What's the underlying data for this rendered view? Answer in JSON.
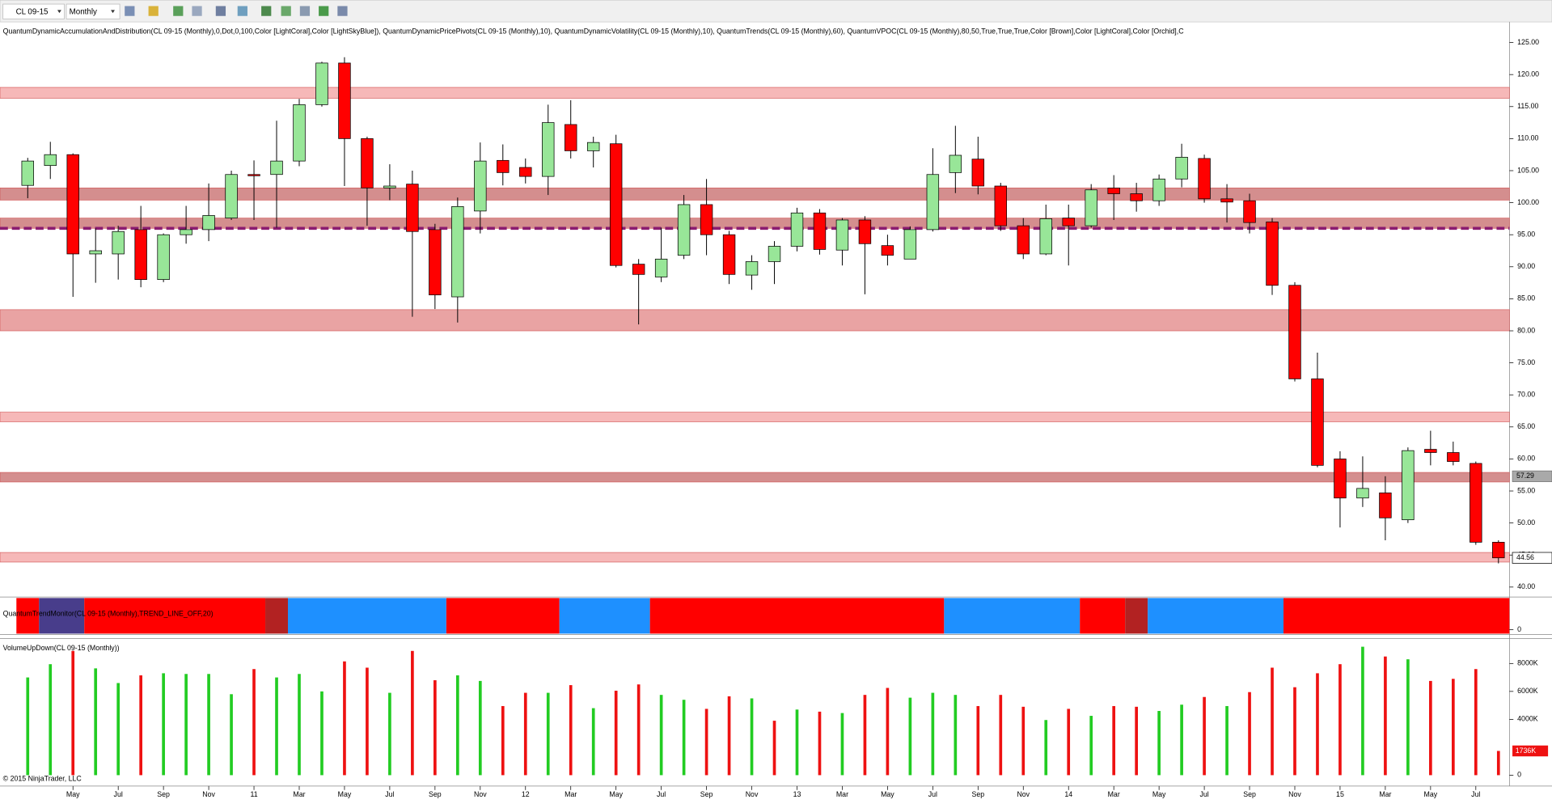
{
  "toolbar": {
    "symbol": "CL 09-15",
    "period": "Monthly"
  },
  "copyright": "© 2015 NinjaTrader, LLC",
  "chart_data": [
    {
      "type": "candlestick",
      "title": "QuantumDynamicAccumulationAndDistribution(CL 09-15 (Monthly),0,Dot,0,100,Color [LightCoral],Color [LightSkyBlue]), QuantumDynamicPricePivots(CL 09-15 (Monthly),10), QuantumDynamicVolatility(CL 09-15 (Monthly),10), QuantumTrends(CL 09-15 (Monthly),60), QuantumVPOC(CL 09-15 (Monthly),80,50,True,True,True,Color [Brown],Color [LightCoral],Color [Orchid],C",
      "categories": [
        null,
        null,
        "May",
        null,
        "Jul",
        null,
        "Sep",
        null,
        "Nov",
        null,
        "11",
        null,
        "Mar",
        null,
        "May",
        null,
        "Jul",
        null,
        "Sep",
        null,
        "Nov",
        null,
        "12",
        null,
        "Mar",
        null,
        "May",
        null,
        "Jul",
        null,
        "Sep",
        null,
        "Nov",
        null,
        "13",
        null,
        "Mar",
        null,
        "May",
        null,
        "Jul",
        null,
        "Sep",
        null,
        "Nov",
        null,
        "14",
        null,
        "Mar",
        null,
        "May",
        null,
        "Jul",
        null,
        "Sep",
        null,
        "Nov",
        null,
        "15",
        null,
        "Mar",
        null,
        "May",
        null,
        "Jul",
        null
      ],
      "open": [
        102.7,
        105.8,
        107.5,
        92,
        92,
        95.8,
        88,
        95,
        95.8,
        97.6,
        104.4,
        104.4,
        106.5,
        115.3,
        121.8,
        110,
        102.3,
        102.9,
        95.8,
        85.3,
        98.7,
        106.6,
        105.5,
        104.1,
        112.2,
        108.1,
        109.2,
        90.4,
        88.4,
        91.8,
        99.7,
        95,
        88.7,
        90.8,
        93.2,
        98.4,
        92.6,
        97.3,
        93.3,
        91.2,
        95.8,
        104.7,
        106.8,
        102.6,
        96.4,
        92,
        97.6,
        96.4,
        102.3,
        101.4,
        100.3,
        103.7,
        106.9,
        100.6,
        100.3,
        97,
        87.1,
        72.5,
        60,
        53.9,
        54.7,
        50.5,
        61.5,
        61,
        59.3,
        47
      ],
      "high": [
        107,
        109.5,
        107.7,
        96,
        96.4,
        99.5,
        95.2,
        99.5,
        103,
        105,
        106.6,
        112.8,
        116.2,
        122,
        122.7,
        110.3,
        106,
        105,
        96.7,
        100.8,
        109.4,
        109.1,
        106.9,
        115.3,
        116,
        110.3,
        110.6,
        91.2,
        96.1,
        101.2,
        103.7,
        95.6,
        91.8,
        94,
        99.2,
        99,
        97.6,
        97.9,
        95,
        96.3,
        108.5,
        112,
        110.3,
        103.1,
        97.6,
        99.7,
        99.7,
        102.9,
        104.3,
        103.1,
        104.4,
        109.2,
        107.5,
        102.9,
        101.4,
        97.6,
        87.6,
        76.6,
        61.2,
        60.4,
        57.3,
        61.8,
        64.4,
        62.7,
        59.6,
        47.3
      ],
      "low": [
        100.7,
        103.7,
        85.3,
        87.5,
        88,
        86.8,
        87.6,
        93.6,
        94,
        97.3,
        97.3,
        96.1,
        105.7,
        115,
        102.6,
        96.4,
        100.4,
        82.2,
        83.4,
        81.3,
        95.2,
        102.7,
        103,
        101.2,
        106.9,
        105.5,
        89.9,
        81,
        87.6,
        91.2,
        91.8,
        87.3,
        86.4,
        87.3,
        92.4,
        91.9,
        90.2,
        85.7,
        90.2,
        91.2,
        95.5,
        101.5,
        101.3,
        95.6,
        91.2,
        91.8,
        90.2,
        96.1,
        97.3,
        98.6,
        99.5,
        102.4,
        100,
        96.9,
        95.2,
        85.6,
        72.1,
        58.7,
        49.3,
        52.5,
        47.3,
        50,
        59,
        59,
        46.6,
        43.7
      ],
      "close": [
        106.5,
        107.5,
        92,
        92.5,
        95.5,
        88,
        95,
        95.8,
        98,
        104.4,
        104.2,
        106.5,
        115.3,
        121.8,
        110,
        102.3,
        102.6,
        95.5,
        85.6,
        99.4,
        106.5,
        104.7,
        104.1,
        112.5,
        108.1,
        109.4,
        90.2,
        88.8,
        91.2,
        99.7,
        95,
        88.8,
        90.8,
        93.2,
        98.4,
        92.7,
        97.3,
        93.6,
        91.8,
        95.8,
        104.4,
        107.4,
        102.6,
        96.4,
        92,
        97.5,
        96.4,
        102,
        101.4,
        100.3,
        103.7,
        107.1,
        100.6,
        100.1,
        96.9,
        87.1,
        72.5,
        59,
        53.9,
        55.4,
        50.8,
        61.3,
        61,
        59.6,
        47,
        44.56
      ],
      "up_color": "#98e698",
      "down_color": "#ff0000",
      "zones": [
        {
          "low": 116.3,
          "high": 118,
          "color": "#f6b8b8"
        },
        {
          "low": 100.4,
          "high": 102.3,
          "color": "#d48e8e"
        },
        {
          "low": 96,
          "high": 97.6,
          "color": "#d48e8e"
        },
        {
          "low": 80,
          "high": 83.3,
          "color": "#e9a3a3"
        },
        {
          "low": 65.8,
          "high": 67.3,
          "color": "#f6b8b8"
        },
        {
          "low": 56.4,
          "high": 57.9,
          "color": "#d48e8e"
        },
        {
          "low": 43.9,
          "high": 45.4,
          "color": "#f6b8b8"
        }
      ],
      "vpoc": 96,
      "vpoc_color": "#8b1c70",
      "price_markers": [
        57.29
      ],
      "ylim": [
        38.6,
        125.9
      ],
      "yticks": [
        {
          "value": 40,
          "label": "40.00"
        },
        {
          "value": 45,
          "label": "45.00"
        },
        {
          "value": 50,
          "label": "50.00"
        },
        {
          "value": 55,
          "label": "55.00"
        },
        {
          "value": 60,
          "label": "60.00"
        },
        {
          "value": 65,
          "label": "65.00"
        },
        {
          "value": 70,
          "label": "70.00"
        },
        {
          "value": 75,
          "label": "75.00"
        },
        {
          "value": 80,
          "label": "80.00"
        },
        {
          "value": 85,
          "label": "85.00"
        },
        {
          "value": 90,
          "label": "90.00"
        },
        {
          "value": 95,
          "label": "95.00"
        },
        {
          "value": 100,
          "label": "100.00"
        },
        {
          "value": 105,
          "label": "105.00"
        },
        {
          "value": 110,
          "label": "110.00"
        },
        {
          "value": 115,
          "label": "115.00"
        },
        {
          "value": 120,
          "label": "120.00"
        },
        {
          "value": 125,
          "label": "125.00"
        }
      ]
    },
    {
      "type": "segments",
      "title": "QuantumTrendMonitor(CL 09-15 (Monthly),TREND_LINE_OFF,20)",
      "segments": [
        {
          "from": 0,
          "to": 0,
          "color": "#ff0000"
        },
        {
          "from": 1,
          "to": 2,
          "color": "#483d8b"
        },
        {
          "from": 3,
          "to": 10,
          "color": "#ff0000"
        },
        {
          "from": 11,
          "to": 11,
          "color": "#b22222"
        },
        {
          "from": 12,
          "to": 18,
          "color": "#1e90ff"
        },
        {
          "from": 19,
          "to": 23,
          "color": "#ff0000"
        },
        {
          "from": 24,
          "to": 27,
          "color": "#1e90ff"
        },
        {
          "from": 28,
          "to": 40,
          "color": "#ff0000"
        },
        {
          "from": 41,
          "to": 46,
          "color": "#1e90ff"
        },
        {
          "from": 47,
          "to": 48,
          "color": "#ff0000"
        },
        {
          "from": 49,
          "to": 49,
          "color": "#b22222"
        },
        {
          "from": 50,
          "to": 55,
          "color": "#1e90ff"
        },
        {
          "from": 56,
          "to": 65,
          "color": "#ff0000"
        }
      ],
      "yticks": [
        0
      ]
    },
    {
      "type": "volume",
      "title": "VolumeUpDown(CL 09-15 (Monthly))",
      "values": [
        7000,
        7950,
        8900,
        7650,
        6600,
        7150,
        7300,
        7250,
        7250,
        5800,
        7600,
        7000,
        7250,
        6000,
        8150,
        7700,
        5900,
        8900,
        6800,
        7150,
        6750,
        4950,
        5900,
        5900,
        6450,
        4800,
        6050,
        6500,
        5750,
        5400,
        4750,
        5650,
        5500,
        3900,
        4700,
        4550,
        4450,
        5750,
        6250,
        5550,
        5900,
        5750,
        4950,
        5750,
        4900,
        3950,
        4750,
        4250,
        4950,
        4900,
        4600,
        5050,
        5600,
        4950,
        5950,
        7700,
        6300,
        7300,
        7950,
        9200,
        8500,
        8300,
        6750,
        6900,
        7600,
        1736
      ],
      "colors": [
        "#22cc22",
        "#22cc22",
        "#ee1111",
        "#22cc22",
        "#22cc22",
        "#ee1111",
        "#22cc22",
        "#22cc22",
        "#22cc22",
        "#22cc22",
        "#ee1111",
        "#22cc22",
        "#22cc22",
        "#22cc22",
        "#ee1111",
        "#ee1111",
        "#22cc22",
        "#ee1111",
        "#ee1111",
        "#22cc22",
        "#22cc22",
        "#ee1111",
        "#ee1111",
        "#22cc22",
        "#ee1111",
        "#22cc22",
        "#ee1111",
        "#ee1111",
        "#22cc22",
        "#22cc22",
        "#ee1111",
        "#ee1111",
        "#22cc22",
        "#ee1111",
        "#22cc22",
        "#ee1111",
        "#22cc22",
        "#ee1111",
        "#ee1111",
        "#22cc22",
        "#22cc22",
        "#22cc22",
        "#ee1111",
        "#ee1111",
        "#ee1111",
        "#22cc22",
        "#ee1111",
        "#22cc22",
        "#ee1111",
        "#ee1111",
        "#22cc22",
        "#22cc22",
        "#ee1111",
        "#22cc22",
        "#ee1111",
        "#ee1111",
        "#ee1111",
        "#ee1111",
        "#ee1111",
        "#22cc22",
        "#ee1111",
        "#22cc22",
        "#ee1111",
        "#ee1111",
        "#ee1111",
        "#ee1111"
      ],
      "last_label": "1736K",
      "ylim": [
        -640,
        9570
      ],
      "yticks": [
        {
          "value": 0,
          "label": "0"
        },
        {
          "value": 4000,
          "label": "4000K"
        },
        {
          "value": 6000,
          "label": "6000K"
        },
        {
          "value": 8000,
          "label": "8000K"
        }
      ]
    }
  ]
}
